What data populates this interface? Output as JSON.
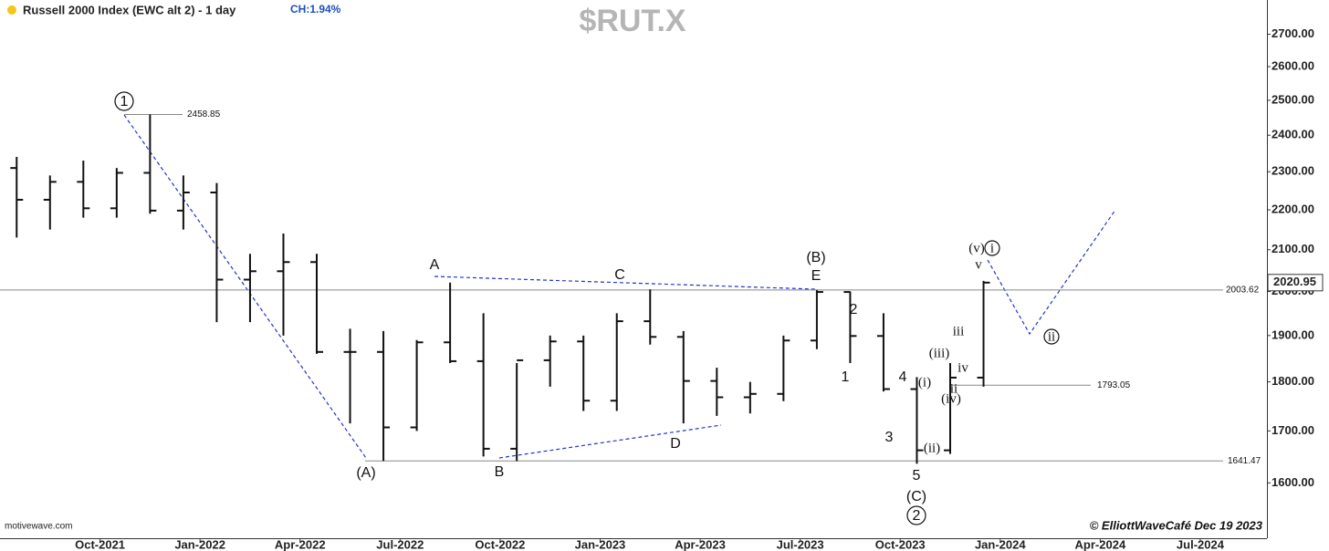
{
  "chart_data": {
    "type": "ohlc",
    "title": "Russell 2000 Index (EWC alt 2) - 1 day",
    "subtitle": "CH:1.94%",
    "watermark": "$RUT.X",
    "source": "motivewave.com",
    "credit": "© ElliottWaveCafé Dec 19 2023",
    "color": "#111111",
    "log_scale": true,
    "x": [
      "2021-07",
      "2021-08",
      "2021-09",
      "2021-10",
      "2021-11",
      "2021-12",
      "2022-01",
      "2022-02",
      "2022-03",
      "2022-04",
      "2022-05",
      "2022-06",
      "2022-07",
      "2022-08",
      "2022-09",
      "2022-10",
      "2022-11",
      "2022-12",
      "2023-01",
      "2023-02",
      "2023-03",
      "2023-04",
      "2023-05",
      "2023-06",
      "2023-07",
      "2023-08",
      "2023-09",
      "2023-10",
      "2023-11",
      "2023-12"
    ],
    "open": [
      2310,
      2226,
      2273,
      2204,
      2297,
      2198,
      2245,
      2028,
      2048,
      2070,
      1864,
      1864,
      1707,
      1885,
      1844,
      1665,
      1846,
      1887,
      1761,
      1932,
      1897,
      1802,
      1768,
      1775,
      1889,
      1999,
      1899,
      1785,
      1662,
      1809
    ],
    "high": [
      2340,
      2290,
      2330,
      2310,
      2458.85,
      2290,
      2270,
      2090,
      2140,
      2090,
      1915,
      1910,
      1890,
      2021,
      1950,
      1840,
      1900,
      1900,
      1950,
      2005,
      1910,
      1830,
      1800,
      1900,
      2003.62,
      2000,
      1950,
      1810,
      1840,
      2025
    ],
    "low": [
      2130,
      2150,
      2180,
      2180,
      2190,
      2150,
      1930,
      1930,
      1900,
      1860,
      1715,
      1641.47,
      1700,
      1840,
      1650,
      1641,
      1790,
      1740,
      1740,
      1880,
      1715,
      1730,
      1735,
      1760,
      1870,
      1840,
      1780,
      1636,
      1655,
      1790
    ],
    "close": [
      2226,
      2273,
      2204,
      2297,
      2198,
      2245,
      2028,
      2048,
      2070,
      1864,
      1864,
      1707,
      1885,
      1844,
      1665,
      1846,
      1887,
      1761,
      1932,
      1897,
      1802,
      1768,
      1775,
      1889,
      1999,
      1899,
      1785,
      1662,
      1809,
      2020.95
    ],
    "xlim": [
      "2021-07",
      "2024-09"
    ],
    "xticks": [
      {
        "value": "2021-10",
        "label": "Oct-2021"
      },
      {
        "value": "2022-01",
        "label": "Jan-2022"
      },
      {
        "value": "2022-04",
        "label": "Apr-2022"
      },
      {
        "value": "2022-07",
        "label": "Jul-2022"
      },
      {
        "value": "2022-10",
        "label": "Oct-2022"
      },
      {
        "value": "2023-01",
        "label": "Jan-2023"
      },
      {
        "value": "2023-04",
        "label": "Apr-2023"
      },
      {
        "value": "2023-07",
        "label": "Jul-2023"
      },
      {
        "value": "2023-10",
        "label": "Oct-2023"
      },
      {
        "value": "2024-01",
        "label": "Jan-2024"
      },
      {
        "value": "2024-04",
        "label": "Apr-2024"
      },
      {
        "value": "2024-07",
        "label": "Jul-2024"
      }
    ],
    "ylim": [
      1500,
      2810
    ],
    "yticks": [
      {
        "value": 1600,
        "label": "1600.00"
      },
      {
        "value": 1700,
        "label": "1700.00"
      },
      {
        "value": 1800,
        "label": "1800.00"
      },
      {
        "value": 1900,
        "label": "1900.00"
      },
      {
        "value": 2000,
        "label": "2000.00"
      },
      {
        "value": 2100,
        "label": "2100.00"
      },
      {
        "value": 2200,
        "label": "2200.00"
      },
      {
        "value": 2300,
        "label": "2300.00"
      },
      {
        "value": 2400,
        "label": "2400.00"
      },
      {
        "value": 2500,
        "label": "2500.00"
      },
      {
        "value": 2600,
        "label": "2600.00"
      },
      {
        "value": 2700,
        "label": "2700.00"
      }
    ],
    "levels": [
      2458.85,
      2003.62,
      1793.05,
      1641.47
    ],
    "annotations": [
      {
        "text": "1",
        "circled": true
      },
      {
        "text": "(A)"
      },
      {
        "text": "A"
      },
      {
        "text": "B"
      },
      {
        "text": "C"
      },
      {
        "text": "D"
      },
      {
        "text": "(B)"
      },
      {
        "text": "E"
      },
      {
        "text": "2"
      },
      {
        "text": "1"
      },
      {
        "text": "3"
      },
      {
        "text": "4"
      },
      {
        "text": "5"
      },
      {
        "text": "(C)"
      },
      {
        "text": "2",
        "circled": true
      },
      {
        "text": "(i)",
        "serif": true
      },
      {
        "text": "(ii)",
        "serif": true
      },
      {
        "text": "(iii)",
        "serif": true
      },
      {
        "text": "(iv)",
        "serif": true
      },
      {
        "text": "ii",
        "serif": true
      },
      {
        "text": "iii",
        "serif": true
      },
      {
        "text": "iv",
        "serif": true
      },
      {
        "text": "v",
        "serif": true
      },
      {
        "text": "(v)",
        "serif": true
      },
      {
        "text": "i",
        "circled": true,
        "serif": true
      },
      {
        "text": "ii",
        "circled": true,
        "serif": true
      }
    ]
  }
}
